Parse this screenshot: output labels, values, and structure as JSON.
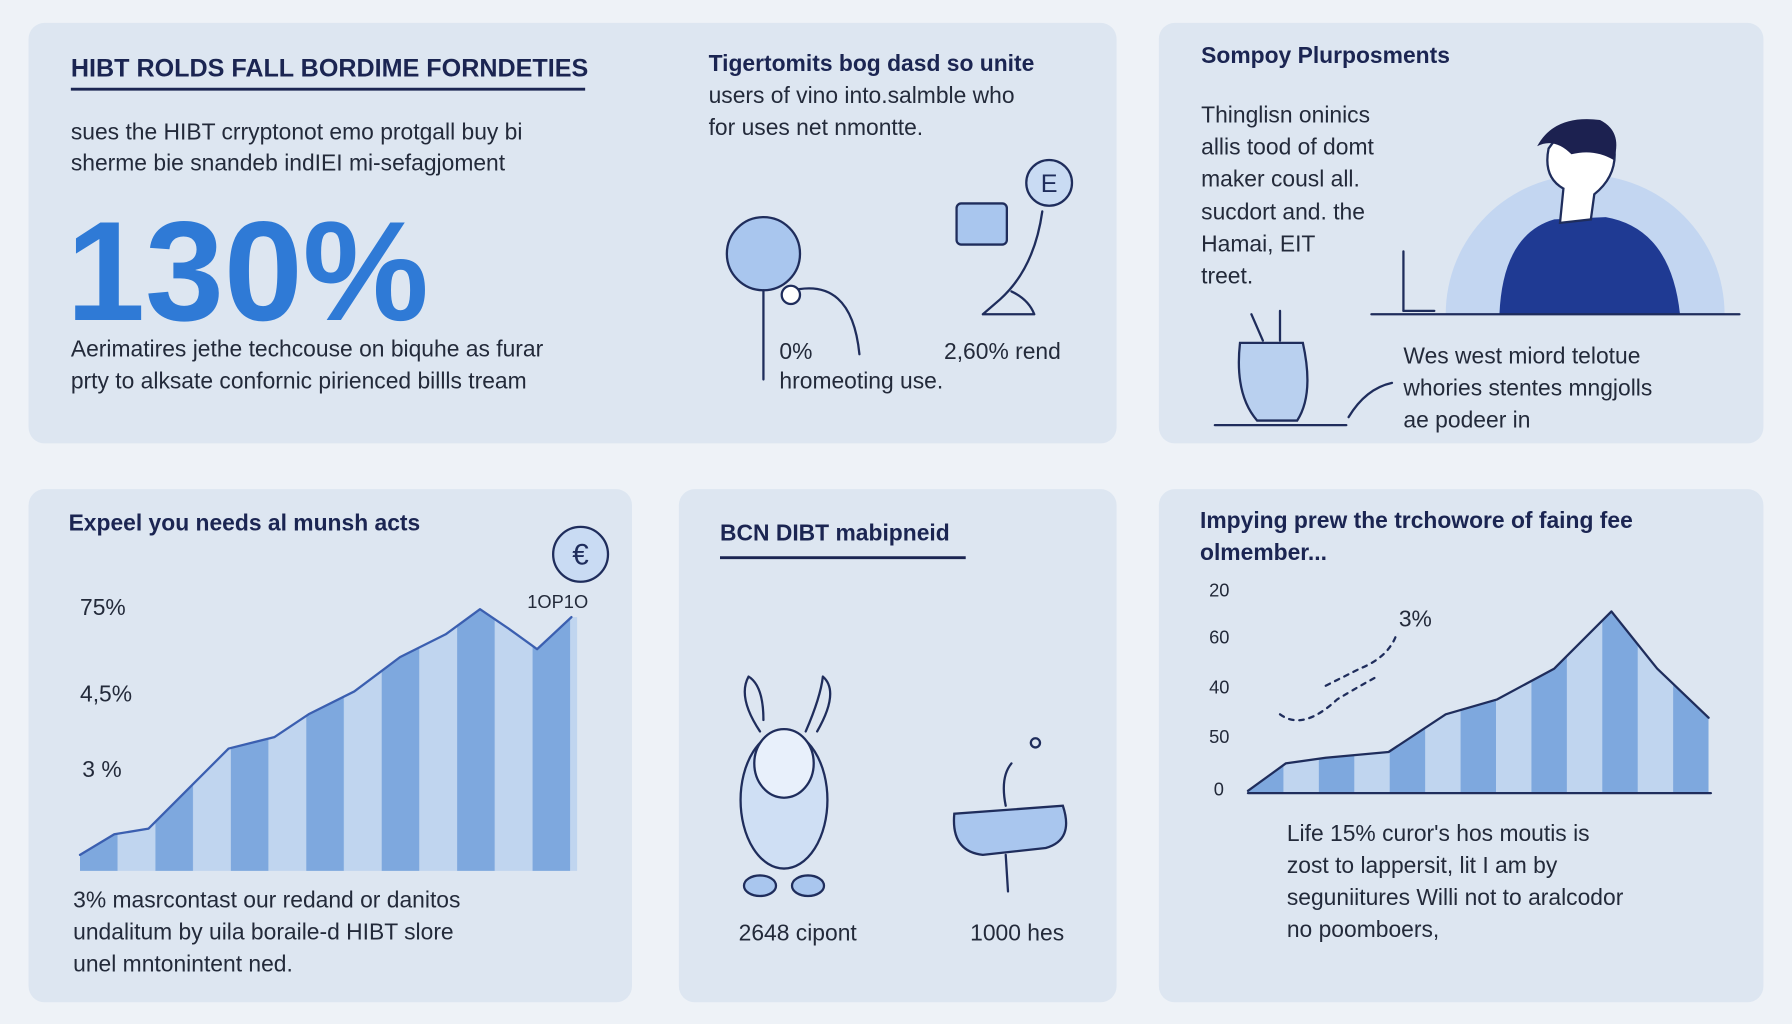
{
  "panel1": {
    "title": "HIBT ROLDS FALL BORDIME FORNDETIES",
    "intro": [
      "sues the HIBT crryptonot emo protgall buy bi",
      "sherme bie snandeb indIEI mi-sefagjoment"
    ],
    "stat": "130%",
    "caption": [
      "Aerimatires jethe techcouse on biquhe as furar",
      "prty to alksate confornic pirienced billls tream"
    ],
    "side_text": [
      "Tigertomits bog dasd so unite",
      "users of vino into.salmble who",
      "for uses net nmontte."
    ],
    "icon": "E",
    "label_left": "0%",
    "label_right": "2,60% rend",
    "label_bottom": "hromeoting use."
  },
  "panel2": {
    "title": "Sompoy Plurposments",
    "text": [
      "Thinglisn oninics",
      "allis tood of domt",
      "maker cousl all.",
      "sucdort and. the",
      "Hamai, EIT",
      "treet."
    ],
    "footer": [
      "Wes west miord telotue",
      "whories stentes mngjolls",
      "ae podeer in"
    ]
  },
  "panel3": {
    "title": "Expeel you needs al munsh acts",
    "icon": "€",
    "badge": "1OP1O",
    "axis": [
      "75%",
      "4,5%",
      "3 %"
    ],
    "caption": [
      "3% masrcontast our redand or danitos",
      "undalitum by uila boraile-d HIBT slore",
      "unel mntonintent ned."
    ]
  },
  "panel4": {
    "title": "BCN DIBT mabipneid",
    "label_left": "2648 cipont",
    "label_right": "1000 hes"
  },
  "panel5": {
    "title": [
      "Impying prew the trchowore of faing fee",
      "olmember..."
    ],
    "axis": [
      "20",
      "60",
      "40",
      "50",
      "0"
    ],
    "note": "3%",
    "caption": [
      "Life 15% curor's hos moutis is",
      "zost to lappersit, lit I am by",
      "seguniitures Willi not to aralcodor",
      "no poomboers,"
    ]
  }
}
